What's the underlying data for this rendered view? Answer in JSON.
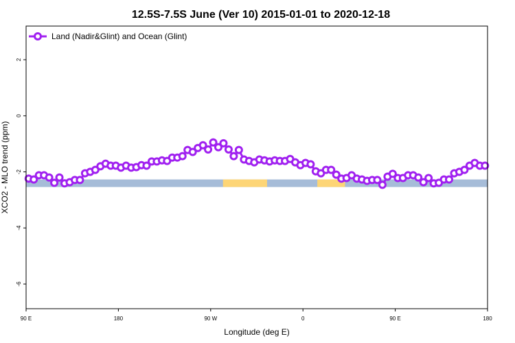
{
  "chart_data": {
    "type": "line",
    "title": "12.5S-7.5S June (Ver 10)   2015-01-01 to 2020-12-18",
    "xlabel": "Longitude (deg E)",
    "ylabel": "XCO2 - MLO trend (ppm)",
    "xlim": [
      90,
      540
    ],
    "ylim": [
      -6.88,
      3.2
    ],
    "x_ticks": [
      90,
      180,
      270,
      360,
      450,
      540
    ],
    "x_tick_labels": [
      "90 E",
      "180",
      "90 W",
      "0",
      "90 E",
      "180"
    ],
    "y_ticks": [
      2,
      0,
      -2,
      -4,
      -6
    ],
    "y_tick_labels": [
      "2",
      "0",
      "-2",
      "-4",
      "-6"
    ],
    "grid": false,
    "legend": {
      "position": "top-left",
      "entries": [
        "Land (Nadir&Glint) and Ocean (Glint)"
      ]
    },
    "series": [
      {
        "name": "Land (Nadir&Glint) and Ocean (Glint)",
        "color": "#a020f0",
        "x_start": 92.5,
        "x_step": 5,
        "values": [
          -2.24,
          -2.27,
          -2.12,
          -2.12,
          -2.2,
          -2.39,
          -2.2,
          -2.41,
          -2.37,
          -2.29,
          -2.29,
          -2.05,
          -2.0,
          -1.93,
          -1.8,
          -1.71,
          -1.78,
          -1.78,
          -1.85,
          -1.78,
          -1.85,
          -1.83,
          -1.76,
          -1.78,
          -1.63,
          -1.63,
          -1.59,
          -1.61,
          -1.49,
          -1.49,
          -1.44,
          -1.22,
          -1.29,
          -1.15,
          -1.05,
          -1.2,
          -0.95,
          -1.12,
          -0.98,
          -1.2,
          -1.44,
          -1.22,
          -1.56,
          -1.61,
          -1.66,
          -1.56,
          -1.59,
          -1.63,
          -1.59,
          -1.61,
          -1.61,
          -1.54,
          -1.66,
          -1.76,
          -1.68,
          -1.73,
          -1.98,
          -2.05,
          -1.93,
          -1.93,
          -2.1,
          -2.24,
          -2.22,
          -2.12,
          -2.24,
          -2.27,
          -2.32,
          -2.29,
          -2.29,
          -2.46,
          -2.17,
          -2.07,
          -2.22,
          -2.22,
          -2.12,
          -2.12,
          -2.2,
          -2.37,
          -2.22,
          -2.41,
          -2.39,
          -2.27,
          -2.27,
          -2.05,
          -2.0,
          -1.93,
          -1.78,
          -1.68,
          -1.78,
          -1.78
        ]
      }
    ],
    "surface_band": {
      "y_range": [
        -2.54,
        -2.27
      ],
      "ocean_color": "#a6bcd8",
      "land_color": "#fdd576",
      "land_segments": [
        [
          282,
          325
        ],
        [
          374,
          401
        ]
      ]
    }
  }
}
